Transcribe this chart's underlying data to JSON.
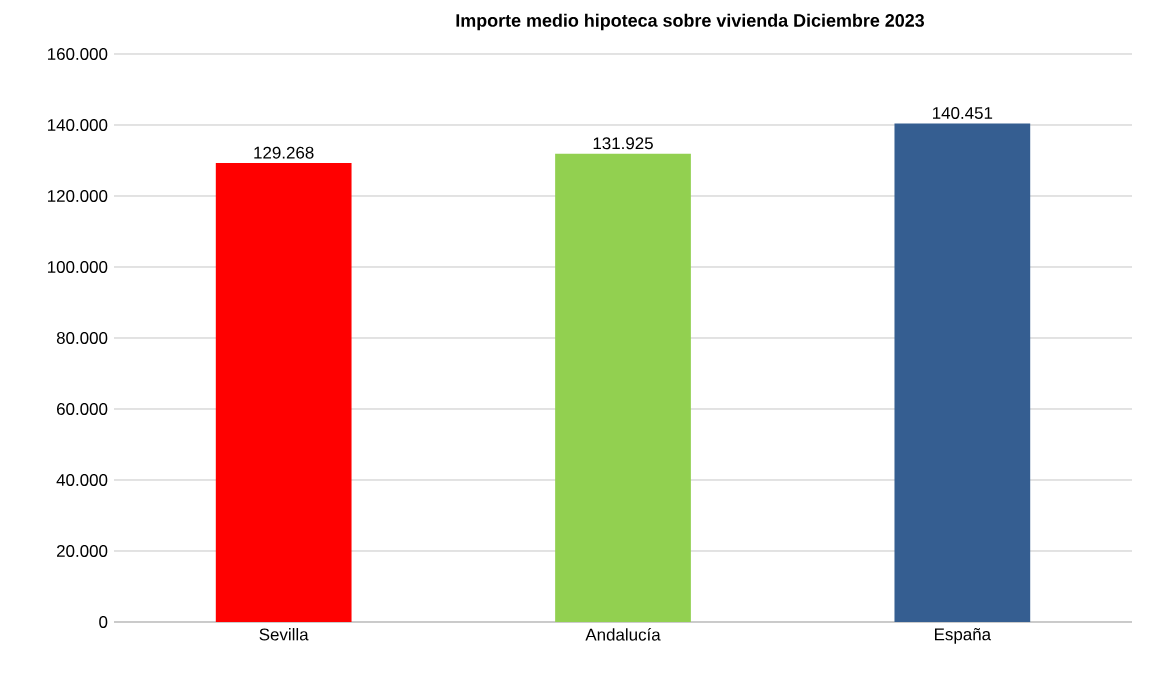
{
  "chart_data": {
    "type": "bar",
    "title": "Importe medio hipoteca sobre vivienda Diciembre 2023",
    "categories": [
      "Sevilla",
      "Andalucía",
      "España"
    ],
    "values": [
      129268,
      131925,
      140451
    ],
    "value_labels": [
      "129.268",
      "131.925",
      "140.451"
    ],
    "colors": [
      "#ff0000",
      "#92d050",
      "#355e91"
    ],
    "ylim": [
      0,
      160000
    ],
    "yticks": [
      0,
      {
        "value": 20000,
        "label": "20.000"
      },
      {
        "value": 40000,
        "label": "40.000"
      },
      {
        "value": 60000,
        "label": "60.000"
      },
      {
        "value": 80000,
        "label": "80.000"
      },
      {
        "value": 100000,
        "label": "100.000"
      },
      {
        "value": 120000,
        "label": "120.000"
      },
      {
        "value": 140000,
        "label": "140.000"
      },
      {
        "value": 160000,
        "label": "160.000"
      }
    ],
    "grid": "y"
  }
}
